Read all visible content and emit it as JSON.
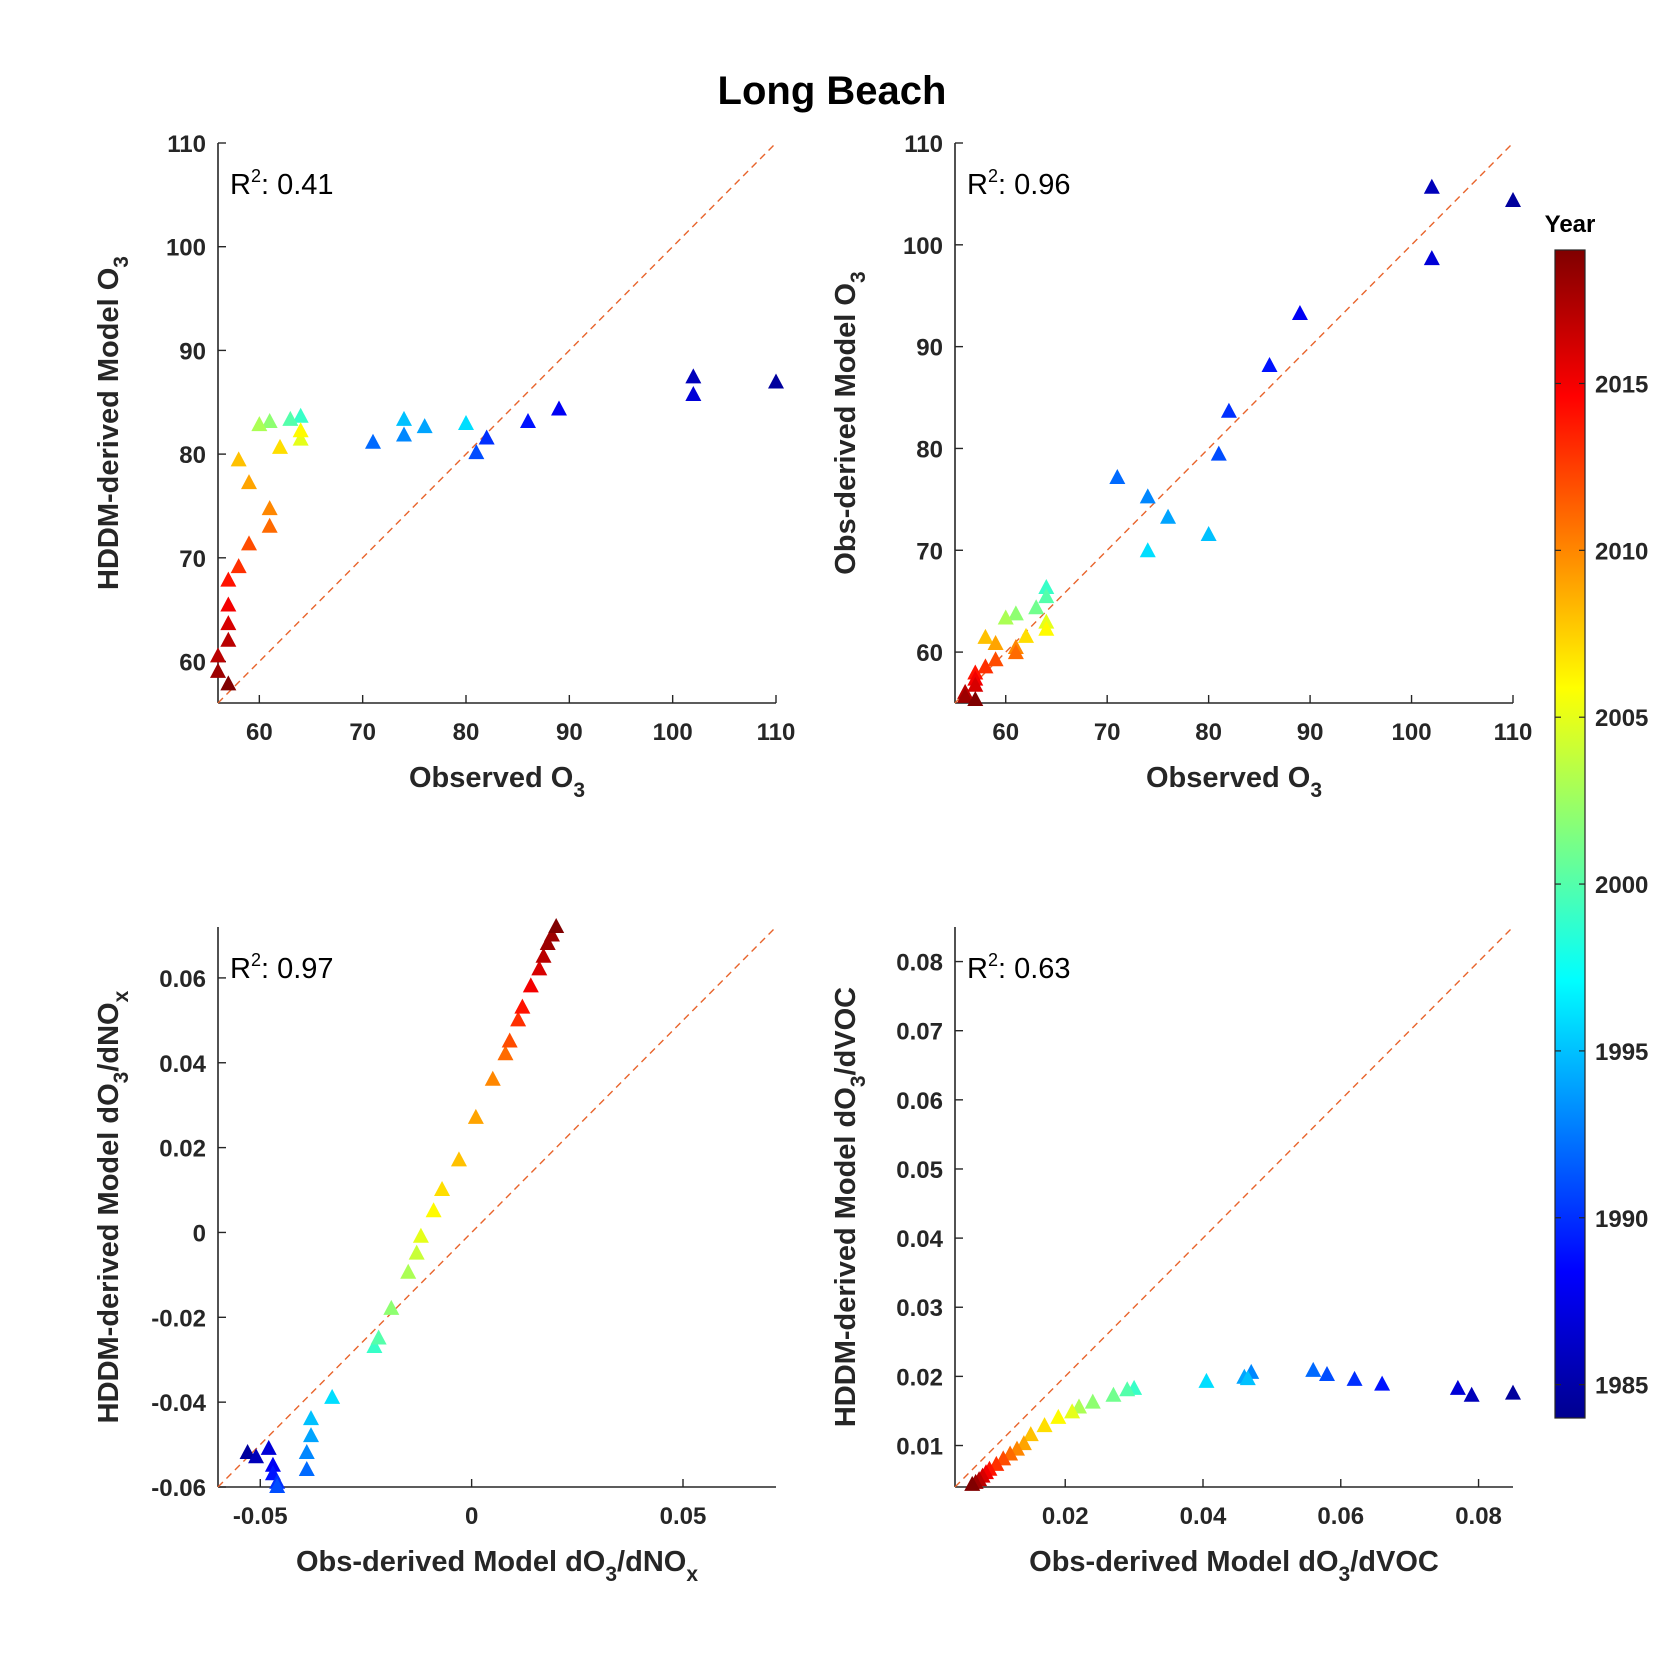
{
  "figure_title": "Long Beach",
  "colorbar": {
    "title": "Year",
    "min": 1984,
    "max": 2019,
    "ticks": [
      1985,
      1990,
      1995,
      2000,
      2005,
      2010,
      2015
    ],
    "colormap": "jet"
  },
  "reference_line_color": "#E8642C",
  "chart_data": [
    {
      "type": "scatter",
      "panel": "top-left",
      "xlabel_parts": [
        [
          "Observed O",
          ""
        ],
        [
          "3",
          "sub"
        ]
      ],
      "ylabel_parts": [
        [
          "HDDM-derived Model O",
          ""
        ],
        [
          "3",
          "sub"
        ]
      ],
      "annotation": {
        "prefix": "R",
        "sup": "2",
        "suffix": ": 0.41"
      },
      "xlim": [
        56,
        110
      ],
      "ylim": [
        56,
        110
      ],
      "xticks": [
        60,
        70,
        80,
        90,
        100,
        110
      ],
      "yticks": [
        60,
        70,
        80,
        90,
        100,
        110
      ],
      "tick_decimals": 0,
      "reference_line": "y = x",
      "points": [
        {
          "x": 110,
          "y": 86.9,
          "year": 1985
        },
        {
          "x": 102,
          "y": 87.4,
          "year": 1986
        },
        {
          "x": 102,
          "y": 85.7,
          "year": 1987
        },
        {
          "x": 89,
          "y": 84.3,
          "year": 1988
        },
        {
          "x": 86,
          "y": 83.1,
          "year": 1989
        },
        {
          "x": 82,
          "y": 81.5,
          "year": 1990
        },
        {
          "x": 81,
          "y": 80.1,
          "year": 1991
        },
        {
          "x": 71,
          "y": 81.1,
          "year": 1992
        },
        {
          "x": 74,
          "y": 81.8,
          "year": 1993
        },
        {
          "x": 76,
          "y": 82.6,
          "year": 1994
        },
        {
          "x": 74,
          "y": 83.3,
          "year": 1995
        },
        {
          "x": 80,
          "y": 82.9,
          "year": 1996
        },
        {
          "x": 64,
          "y": 83.6,
          "year": 1999
        },
        {
          "x": 63,
          "y": 83.3,
          "year": 2000
        },
        {
          "x": 61,
          "y": 83.1,
          "year": 2002
        },
        {
          "x": 60,
          "y": 82.8,
          "year": 2003
        },
        {
          "x": 64,
          "y": 81.4,
          "year": 2005
        },
        {
          "x": 64,
          "y": 82.2,
          "year": 2006
        },
        {
          "x": 62,
          "y": 80.6,
          "year": 2007
        },
        {
          "x": 58,
          "y": 79.4,
          "year": 2008
        },
        {
          "x": 59,
          "y": 77.2,
          "year": 2009
        },
        {
          "x": 61,
          "y": 74.7,
          "year": 2010
        },
        {
          "x": 61,
          "y": 73.0,
          "year": 2011
        },
        {
          "x": 59,
          "y": 71.3,
          "year": 2012
        },
        {
          "x": 58,
          "y": 69.1,
          "year": 2013
        },
        {
          "x": 57,
          "y": 67.8,
          "year": 2014
        },
        {
          "x": 57,
          "y": 65.4,
          "year": 2015
        },
        {
          "x": 57,
          "y": 63.6,
          "year": 2016
        },
        {
          "x": 57,
          "y": 62.0,
          "year": 2017
        },
        {
          "x": 56,
          "y": 60.5,
          "year": 2017
        },
        {
          "x": 56,
          "y": 59.0,
          "year": 2018
        },
        {
          "x": 57,
          "y": 57.8,
          "year": 2019
        }
      ]
    },
    {
      "type": "scatter",
      "panel": "top-right",
      "xlabel_parts": [
        [
          "Observed O",
          ""
        ],
        [
          "3",
          "sub"
        ]
      ],
      "ylabel_parts": [
        [
          "Obs-derived Model O",
          ""
        ],
        [
          "3",
          "sub"
        ]
      ],
      "annotation": {
        "prefix": "R",
        "sup": "2",
        "suffix": ": 0.96"
      },
      "xlim": [
        55,
        110
      ],
      "ylim": [
        55,
        110
      ],
      "xticks": [
        60,
        70,
        80,
        90,
        100,
        110
      ],
      "yticks": [
        60,
        70,
        80,
        90,
        100,
        110
      ],
      "tick_decimals": 0,
      "reference_line": "y = x",
      "points": [
        {
          "x": 110,
          "y": 104.3,
          "year": 1985
        },
        {
          "x": 102,
          "y": 105.6,
          "year": 1986
        },
        {
          "x": 102,
          "y": 98.6,
          "year": 1987
        },
        {
          "x": 89,
          "y": 93.2,
          "year": 1988
        },
        {
          "x": 86,
          "y": 88.1,
          "year": 1989
        },
        {
          "x": 82,
          "y": 83.6,
          "year": 1990
        },
        {
          "x": 81,
          "y": 79.4,
          "year": 1991
        },
        {
          "x": 71,
          "y": 77.1,
          "year": 1992
        },
        {
          "x": 74,
          "y": 75.2,
          "year": 1993
        },
        {
          "x": 76,
          "y": 73.2,
          "year": 1994
        },
        {
          "x": 80,
          "y": 71.5,
          "year": 1995
        },
        {
          "x": 74,
          "y": 69.9,
          "year": 1996
        },
        {
          "x": 64,
          "y": 66.3,
          "year": 1999
        },
        {
          "x": 64,
          "y": 65.4,
          "year": 2000
        },
        {
          "x": 63,
          "y": 64.3,
          "year": 2001
        },
        {
          "x": 61,
          "y": 63.7,
          "year": 2002
        },
        {
          "x": 60,
          "y": 63.3,
          "year": 2003
        },
        {
          "x": 64,
          "y": 62.9,
          "year": 2005
        },
        {
          "x": 64,
          "y": 62.2,
          "year": 2006
        },
        {
          "x": 62,
          "y": 61.5,
          "year": 2007
        },
        {
          "x": 58,
          "y": 61.4,
          "year": 2008
        },
        {
          "x": 59,
          "y": 60.8,
          "year": 2009
        },
        {
          "x": 61,
          "y": 60.4,
          "year": 2010
        },
        {
          "x": 61,
          "y": 59.9,
          "year": 2011
        },
        {
          "x": 59,
          "y": 59.2,
          "year": 2012
        },
        {
          "x": 58,
          "y": 58.5,
          "year": 2013
        },
        {
          "x": 57,
          "y": 57.9,
          "year": 2014
        },
        {
          "x": 57,
          "y": 57.3,
          "year": 2015
        },
        {
          "x": 57,
          "y": 56.7,
          "year": 2016
        },
        {
          "x": 56,
          "y": 56.0,
          "year": 2017
        },
        {
          "x": 56,
          "y": 55.6,
          "year": 2018
        },
        {
          "x": 57,
          "y": 55.3,
          "year": 2019
        }
      ]
    },
    {
      "type": "scatter",
      "panel": "bottom-left",
      "xlabel_parts": [
        [
          "Obs-derived Model dO",
          ""
        ],
        [
          "3",
          "sub"
        ],
        [
          "/dNO",
          ""
        ],
        [
          "x",
          "sub"
        ]
      ],
      "ylabel_parts": [
        [
          "HDDM-derived Model dO",
          ""
        ],
        [
          "3",
          "sub"
        ],
        [
          "/dNO",
          ""
        ],
        [
          "x",
          "sub"
        ]
      ],
      "annotation": {
        "prefix": "R",
        "sup": "2",
        "suffix": ": 0.97"
      },
      "xlim": [
        -0.06,
        0.072
      ],
      "ylim": [
        -0.06,
        0.072
      ],
      "xticks": [
        -0.05,
        0,
        0.05
      ],
      "xtick_labels": [
        "-0.05",
        "0",
        "0.05"
      ],
      "yticks": [
        -0.06,
        -0.04,
        -0.02,
        0,
        0.02,
        0.04,
        0.06
      ],
      "ytick_labels": [
        "-0.06",
        "-0.04",
        "-0.02",
        "0",
        "0.02",
        "0.04",
        "0.06"
      ],
      "reference_line": "y = x",
      "points": [
        {
          "x": -0.053,
          "y": -0.052,
          "year": 1985
        },
        {
          "x": -0.051,
          "y": -0.053,
          "year": 1986
        },
        {
          "x": -0.048,
          "y": -0.051,
          "year": 1987
        },
        {
          "x": -0.047,
          "y": -0.055,
          "year": 1988
        },
        {
          "x": -0.047,
          "y": -0.057,
          "year": 1989
        },
        {
          "x": -0.046,
          "y": -0.059,
          "year": 1990
        },
        {
          "x": -0.046,
          "y": -0.06,
          "year": 1991
        },
        {
          "x": -0.039,
          "y": -0.056,
          "year": 1992
        },
        {
          "x": -0.039,
          "y": -0.052,
          "year": 1993
        },
        {
          "x": -0.038,
          "y": -0.048,
          "year": 1994
        },
        {
          "x": -0.038,
          "y": -0.044,
          "year": 1995
        },
        {
          "x": -0.033,
          "y": -0.039,
          "year": 1996
        },
        {
          "x": -0.023,
          "y": -0.027,
          "year": 1999
        },
        {
          "x": -0.022,
          "y": -0.025,
          "year": 2000
        },
        {
          "x": -0.019,
          "y": -0.018,
          "year": 2002
        },
        {
          "x": -0.015,
          "y": -0.0095,
          "year": 2003
        },
        {
          "x": -0.013,
          "y": -0.005,
          "year": 2004
        },
        {
          "x": -0.012,
          "y": -0.001,
          "year": 2005
        },
        {
          "x": -0.009,
          "y": 0.005,
          "year": 2006
        },
        {
          "x": -0.007,
          "y": 0.01,
          "year": 2007
        },
        {
          "x": -0.003,
          "y": 0.017,
          "year": 2008
        },
        {
          "x": 0.001,
          "y": 0.027,
          "year": 2009
        },
        {
          "x": 0.005,
          "y": 0.036,
          "year": 2010
        },
        {
          "x": 0.008,
          "y": 0.042,
          "year": 2011
        },
        {
          "x": 0.009,
          "y": 0.045,
          "year": 2012
        },
        {
          "x": 0.011,
          "y": 0.05,
          "year": 2013
        },
        {
          "x": 0.012,
          "y": 0.053,
          "year": 2014
        },
        {
          "x": 0.014,
          "y": 0.058,
          "year": 2015
        },
        {
          "x": 0.016,
          "y": 0.062,
          "year": 2016
        },
        {
          "x": 0.017,
          "y": 0.065,
          "year": 2017
        },
        {
          "x": 0.018,
          "y": 0.068,
          "year": 2018
        },
        {
          "x": 0.019,
          "y": 0.07,
          "year": 2018
        },
        {
          "x": 0.02,
          "y": 0.072,
          "year": 2019
        }
      ]
    },
    {
      "type": "scatter",
      "panel": "bottom-right",
      "xlabel_parts": [
        [
          "Obs-derived Model dO",
          ""
        ],
        [
          "3",
          "sub"
        ],
        [
          "/dVOC",
          ""
        ]
      ],
      "ylabel_parts": [
        [
          "HDDM-derived Model dO",
          ""
        ],
        [
          "3",
          "sub"
        ],
        [
          "/dVOC",
          ""
        ]
      ],
      "annotation": {
        "prefix": "R",
        "sup": "2",
        "suffix": ": 0.63"
      },
      "xlim": [
        0.004,
        0.085
      ],
      "ylim": [
        0.004,
        0.085
      ],
      "xticks": [
        0.02,
        0.04,
        0.06,
        0.08
      ],
      "xtick_labels": [
        "0.02",
        "0.04",
        "0.06",
        "0.08"
      ],
      "yticks": [
        0.01,
        0.02,
        0.03,
        0.04,
        0.05,
        0.06,
        0.07,
        0.08
      ],
      "ytick_labels": [
        "0.01",
        "0.02",
        "0.03",
        "0.04",
        "0.05",
        "0.06",
        "0.07",
        "0.08"
      ],
      "reference_line": "y = x",
      "points": [
        {
          "x": 0.085,
          "y": 0.0175,
          "year": 1985
        },
        {
          "x": 0.079,
          "y": 0.0172,
          "year": 1986
        },
        {
          "x": 0.077,
          "y": 0.0182,
          "year": 1987
        },
        {
          "x": 0.066,
          "y": 0.0188,
          "year": 1989
        },
        {
          "x": 0.062,
          "y": 0.0195,
          "year": 1990
        },
        {
          "x": 0.058,
          "y": 0.0202,
          "year": 1991
        },
        {
          "x": 0.056,
          "y": 0.0208,
          "year": 1992
        },
        {
          "x": 0.047,
          "y": 0.0205,
          "year": 1993
        },
        {
          "x": 0.046,
          "y": 0.0198,
          "year": 1994
        },
        {
          "x": 0.0465,
          "y": 0.0196,
          "year": 1995
        },
        {
          "x": 0.0405,
          "y": 0.0192,
          "year": 1996
        },
        {
          "x": 0.03,
          "y": 0.0182,
          "year": 1999
        },
        {
          "x": 0.029,
          "y": 0.018,
          "year": 2000
        },
        {
          "x": 0.027,
          "y": 0.0172,
          "year": 2001
        },
        {
          "x": 0.024,
          "y": 0.0162,
          "year": 2002
        },
        {
          "x": 0.022,
          "y": 0.0155,
          "year": 2003
        },
        {
          "x": 0.021,
          "y": 0.0148,
          "year": 2005
        },
        {
          "x": 0.019,
          "y": 0.014,
          "year": 2006
        },
        {
          "x": 0.017,
          "y": 0.0128,
          "year": 2007
        },
        {
          "x": 0.015,
          "y": 0.0115,
          "year": 2008
        },
        {
          "x": 0.014,
          "y": 0.0102,
          "year": 2009
        },
        {
          "x": 0.013,
          "y": 0.0094,
          "year": 2010
        },
        {
          "x": 0.012,
          "y": 0.0087,
          "year": 2011
        },
        {
          "x": 0.011,
          "y": 0.008,
          "year": 2012
        },
        {
          "x": 0.01,
          "y": 0.0072,
          "year": 2013
        },
        {
          "x": 0.009,
          "y": 0.0065,
          "year": 2014
        },
        {
          "x": 0.0085,
          "y": 0.006,
          "year": 2015
        },
        {
          "x": 0.008,
          "y": 0.0055,
          "year": 2016
        },
        {
          "x": 0.0075,
          "y": 0.005,
          "year": 2017
        },
        {
          "x": 0.007,
          "y": 0.0046,
          "year": 2018
        },
        {
          "x": 0.0065,
          "y": 0.0043,
          "year": 2019
        }
      ]
    }
  ]
}
